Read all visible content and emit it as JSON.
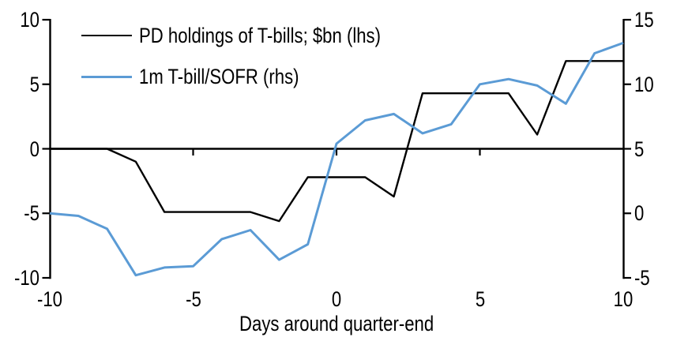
{
  "chart_data": {
    "type": "line",
    "title": "",
    "xlabel": "Days around quarter-end",
    "ylabel_left": "",
    "ylabel_right": "",
    "grid": false,
    "legend_position": "top-left",
    "x": [
      -10,
      -9,
      -8,
      -7,
      -6,
      -5,
      -4,
      -3,
      -2,
      -1,
      0,
      1,
      2,
      3,
      4,
      5,
      6,
      7,
      8,
      9,
      10
    ],
    "series": [
      {
        "name": "PD holdings of T-bills; $bn (lhs)",
        "axis": "left",
        "color": "#000000",
        "stroke_width": 2.4,
        "values": [
          0,
          0,
          0,
          -1,
          -4.9,
          -4.9,
          -4.9,
          -4.9,
          -5.6,
          -2.2,
          -2.2,
          -2.2,
          -3.7,
          4.3,
          4.3,
          4.3,
          4.3,
          1.1,
          6.8,
          6.8,
          6.8
        ]
      },
      {
        "name": "1m T-bill/SOFR (rhs)",
        "axis": "right",
        "color": "#5B9BD5",
        "stroke_width": 3,
        "values": [
          0,
          -0.2,
          -1.2,
          -4.8,
          -4.2,
          -4.1,
          -2,
          -1.3,
          -3.6,
          -2.4,
          5.4,
          7.2,
          7.7,
          6.2,
          6.9,
          10,
          10.4,
          9.9,
          8.5,
          12.4,
          13.2
        ]
      }
    ],
    "axes": {
      "left": {
        "range": [
          -10,
          10
        ],
        "tick_values": [
          10,
          5,
          0,
          -5,
          -10
        ],
        "tick_labels": [
          "10",
          "5",
          "0",
          "-5",
          "-10"
        ]
      },
      "right": {
        "range": [
          -5,
          15
        ],
        "tick_values": [
          15,
          10,
          5,
          0,
          -5
        ],
        "tick_labels": [
          "15",
          "10",
          "5",
          "0",
          "-5"
        ]
      },
      "x": {
        "range": [
          -10,
          10
        ],
        "tick_values": [
          -10,
          -5,
          0,
          5,
          10
        ],
        "tick_labels": [
          "-10",
          "-5",
          "0",
          "5",
          "10"
        ]
      }
    }
  },
  "colors": {
    "axis": "#000000",
    "background": "#FFFFFF",
    "series_pd_holdings": "#000000",
    "series_tbill_sofr": "#5B9BD5"
  }
}
